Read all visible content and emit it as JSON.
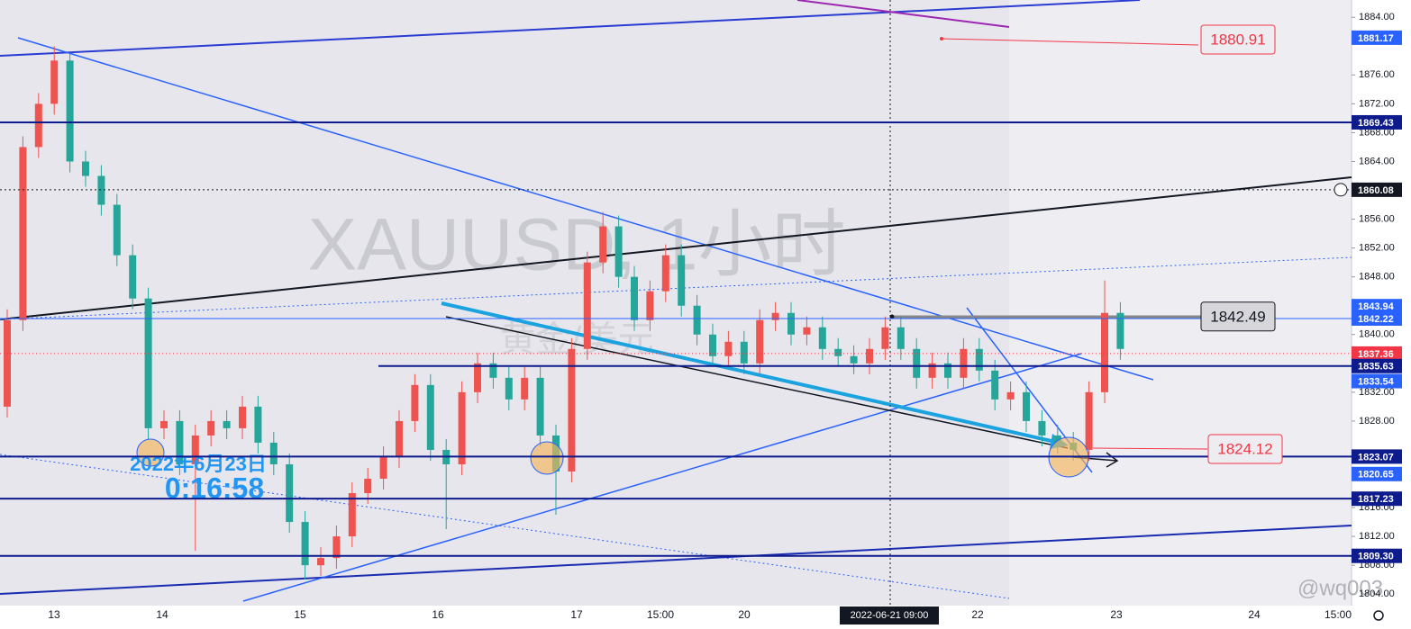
{
  "chart_data": {
    "type": "candlestick",
    "title": "XAUUSD, 1小时",
    "subtitle": "黄金/美元",
    "overlay_date": "2022年6月23日",
    "overlay_time": "0:16:58",
    "watermark": "@wq003",
    "crosshair_x_label": "2022-06-21  09:00",
    "crosshair_y": 1860.08,
    "up_color": "#ef5350",
    "down_color": "#26a69a",
    "ylim": [
      1802.4,
      1886.4
    ],
    "yticks": [
      {
        "value": 1884,
        "label": "1884.00"
      },
      {
        "value": 1876,
        "label": "1876.00"
      },
      {
        "value": 1872,
        "label": "1872.00"
      },
      {
        "value": 1868,
        "label": "1868.00"
      },
      {
        "value": 1864,
        "label": "1864.00"
      },
      {
        "value": 1856,
        "label": "1856.00"
      },
      {
        "value": 1852,
        "label": "1852.00"
      },
      {
        "value": 1848,
        "label": "1848.00"
      },
      {
        "value": 1840,
        "label": "1840.00"
      },
      {
        "value": 1832,
        "label": "1832.00"
      },
      {
        "value": 1828,
        "label": "1828.00"
      },
      {
        "value": 1816,
        "label": "1816.00"
      },
      {
        "value": 1812,
        "label": "1812.00"
      },
      {
        "value": 1808,
        "label": "1808.00"
      },
      {
        "value": 1804,
        "label": "1804.00"
      }
    ],
    "x_labels": [
      "13",
      "14",
      "15",
      "16",
      "17",
      "15:00",
      "20",
      "22",
      "23",
      "24",
      "15:00"
    ],
    "open": [
      1830,
      1842,
      1866,
      1872,
      1878,
      1864,
      1862,
      1858,
      1851,
      1845,
      1827,
      1828,
      1822,
      1826,
      1828,
      1827,
      1830,
      1825,
      1822,
      1814,
      1808,
      1809,
      1812,
      1818,
      1820,
      1823,
      1828,
      1833,
      1824,
      1822,
      1832,
      1836,
      1834,
      1831,
      1834,
      1826,
      1821,
      1838,
      1850,
      1855,
      1848,
      1842,
      1846,
      1851,
      1844,
      1840,
      1837,
      1839,
      1836,
      1842,
      1843,
      1840,
      1841,
      1838,
      1837,
      1836,
      1838,
      1841,
      1838,
      1834,
      1836,
      1834,
      1838,
      1835,
      1831,
      1832,
      1828,
      1826,
      1825,
      1824,
      1832,
      1843
    ],
    "close": [
      1842,
      1866,
      1872,
      1878,
      1864,
      1862,
      1858,
      1851,
      1845,
      1827,
      1828,
      1822,
      1826,
      1828,
      1827,
      1830,
      1825,
      1822,
      1814,
      1808,
      1809,
      1812,
      1818,
      1820,
      1823,
      1828,
      1833,
      1824,
      1822,
      1832,
      1836,
      1834,
      1831,
      1834,
      1826,
      1821,
      1838,
      1850,
      1855,
      1848,
      1842,
      1846,
      1851,
      1844,
      1840,
      1837,
      1839,
      1836,
      1842,
      1843,
      1840,
      1841,
      1838,
      1837,
      1836,
      1838,
      1841,
      1838,
      1834,
      1836,
      1834,
      1838,
      1835,
      1831,
      1832,
      1828,
      1826,
      1825,
      1824,
      1832,
      1843,
      1838
    ],
    "high": [
      1843.5,
      1867.5,
      1873.5,
      1880,
      1879,
      1865.5,
      1863.5,
      1859.5,
      1852.5,
      1846.5,
      1829.5,
      1829.5,
      1827.5,
      1829.5,
      1829.5,
      1831.5,
      1831.5,
      1826.5,
      1823.5,
      1815.5,
      1810.5,
      1813.5,
      1819.5,
      1821.5,
      1824.5,
      1829.5,
      1834.5,
      1834.5,
      1825.5,
      1833.5,
      1837.5,
      1837.5,
      1835.5,
      1835.5,
      1835.5,
      1827.5,
      1839.5,
      1851.5,
      1857,
      1856.5,
      1849.5,
      1847.5,
      1852.5,
      1852.5,
      1845.5,
      1841.5,
      1840.5,
      1840.5,
      1843.5,
      1844.5,
      1844.5,
      1842.5,
      1842.5,
      1839.5,
      1838.5,
      1839.5,
      1842.5,
      1842.5,
      1839.5,
      1837.5,
      1837.5,
      1839.5,
      1839.5,
      1836.5,
      1833.5,
      1833.5,
      1829.5,
      1827.5,
      1826.5,
      1833.5,
      1847.5,
      1844.5
    ],
    "low": [
      1828.5,
      1840.5,
      1864.5,
      1870.5,
      1862.5,
      1860.5,
      1856.5,
      1849.5,
      1843.5,
      1825.5,
      1825.5,
      1820.5,
      1810,
      1824.5,
      1825.5,
      1825.5,
      1823.5,
      1820.5,
      1812.5,
      1806,
      1806.5,
      1807.5,
      1810.5,
      1816.5,
      1818.5,
      1821.5,
      1826.5,
      1822.5,
      1813,
      1820.5,
      1830.5,
      1832.5,
      1829.5,
      1829.5,
      1824.5,
      1815,
      1819.5,
      1836.5,
      1848.5,
      1846.5,
      1840.5,
      1840.5,
      1844.5,
      1842.5,
      1838.5,
      1835.5,
      1835.5,
      1834.5,
      1834.5,
      1840.5,
      1838.5,
      1838.5,
      1836.5,
      1835.5,
      1834.5,
      1834.5,
      1836.5,
      1836.5,
      1832.5,
      1832.5,
      1832.5,
      1832.5,
      1833.5,
      1829.5,
      1829.5,
      1826.5,
      1824.5,
      1823.5,
      1822.5,
      1822.5,
      1830.5,
      1836.5
    ],
    "price_tags": [
      {
        "value": 1881.17,
        "color": "#2962ff"
      },
      {
        "value": 1869.43,
        "color": "#0d1b8c",
        "line": "full"
      },
      {
        "value": 1860.08,
        "color": "#131722"
      },
      {
        "value": 1843.94,
        "color": "#2962ff"
      },
      {
        "value": 1842.22,
        "color": "#2962ff",
        "line": "thin"
      },
      {
        "value": 1837.36,
        "color": "#f23645"
      },
      {
        "value": 1835.63,
        "color": "#0d1b8c",
        "line": "partial"
      },
      {
        "value": 1833.54,
        "color": "#2962ff"
      },
      {
        "value": 1823.07,
        "color": "#0d1b8c",
        "line": "full"
      },
      {
        "value": 1820.65,
        "color": "#2962ff"
      },
      {
        "value": 1817.23,
        "color": "#0d1b8c",
        "line": "full"
      },
      {
        "value": 1809.3,
        "label": "1809.30",
        "color": "#0d1b8c",
        "line": "full"
      }
    ],
    "callouts": [
      {
        "value": 1880.91,
        "color": "#f23645"
      },
      {
        "value": 1842.49,
        "color": "#131722"
      },
      {
        "value": 1824.12,
        "color": "#f23645"
      }
    ]
  }
}
